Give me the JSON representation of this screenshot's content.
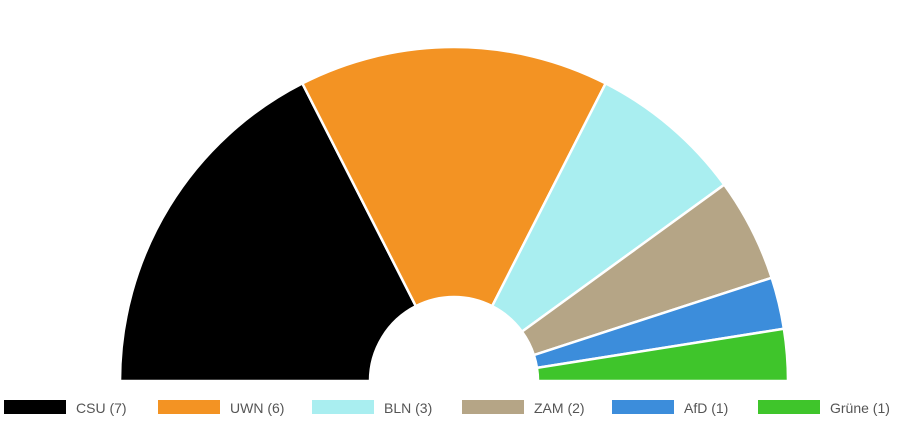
{
  "chart_data": {
    "type": "pie",
    "subtype": "semicircle-parliament",
    "title": "",
    "legend_placement": "bottom",
    "series": [
      {
        "name": "CSU",
        "value": 7,
        "label": "CSU (7)",
        "color": "#000000"
      },
      {
        "name": "UWN",
        "value": 6,
        "label": "UWN (6)",
        "color": "#F39323"
      },
      {
        "name": "BLN",
        "value": 3,
        "label": "BLN (3)",
        "color": "#A9EEF0"
      },
      {
        "name": "ZAM",
        "value": 2,
        "label": "ZAM (2)",
        "color": "#B5A586"
      },
      {
        "name": "AfD",
        "value": 1,
        "label": "AfD (1)",
        "color": "#3C8DDB"
      },
      {
        "name": "Grüne",
        "value": 1,
        "label": "Grüne (1)",
        "color": "#3FC52B"
      }
    ]
  }
}
